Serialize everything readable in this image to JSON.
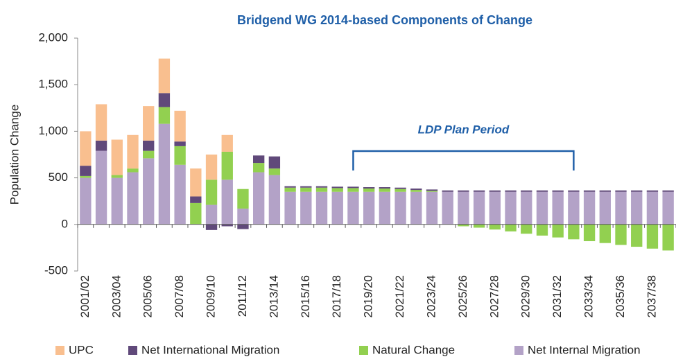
{
  "chart_data": {
    "type": "stacked_bar",
    "title": "Bridgend WG 2014-based Components of Change",
    "y_label": "Population Change",
    "annotation": "LDP Plan Period",
    "categories": [
      "2001/02",
      null,
      "2003/04",
      null,
      "2005/06",
      null,
      "2007/08",
      null,
      "2009/10",
      null,
      "2011/12",
      null,
      "2013/14",
      null,
      "2015/16",
      null,
      "2017/18",
      null,
      "2019/20",
      null,
      "2021/22",
      null,
      "2023/24",
      null,
      "2025/26",
      null,
      "2027/28",
      null,
      "2029/30",
      null,
      "2031/32",
      null,
      "2033/34",
      null,
      "2035/36",
      null,
      "2037/38",
      null
    ],
    "series": [
      {
        "name": "UPC",
        "color": "#f9bf8f",
        "values": [
          370,
          390,
          380,
          360,
          370,
          370,
          330,
          300,
          270,
          180,
          0,
          0,
          0,
          0,
          0,
          0,
          0,
          0,
          0,
          0,
          0,
          0,
          0,
          0,
          0,
          0,
          0,
          0,
          0,
          0,
          0,
          0,
          0,
          0,
          0,
          0,
          0,
          0
        ]
      },
      {
        "name": "Net International Migration",
        "color": "#60497a",
        "values": [
          110,
          110,
          0,
          0,
          110,
          150,
          50,
          70,
          -60,
          -20,
          -50,
          80,
          130,
          15,
          15,
          15,
          15,
          15,
          15,
          15,
          15,
          15,
          15,
          15,
          15,
          15,
          15,
          15,
          15,
          15,
          15,
          15,
          15,
          15,
          15,
          15,
          15,
          15
        ]
      },
      {
        "name": "Natural Change",
        "color": "#92d050",
        "values": [
          20,
          0,
          30,
          40,
          80,
          180,
          200,
          230,
          270,
          300,
          210,
          100,
          70,
          45,
          45,
          45,
          40,
          40,
          35,
          35,
          30,
          20,
          10,
          0,
          -20,
          -35,
          -55,
          -75,
          -100,
          -120,
          -140,
          -160,
          -180,
          -200,
          -220,
          -240,
          -260,
          -280
        ]
      },
      {
        "name": "Net Internal Migration",
        "color": "#b3a2c7",
        "values": [
          500,
          790,
          500,
          560,
          710,
          1080,
          640,
          0,
          210,
          480,
          170,
          560,
          530,
          350,
          350,
          350,
          350,
          350,
          350,
          350,
          350,
          350,
          350,
          350,
          350,
          350,
          350,
          350,
          350,
          350,
          350,
          350,
          350,
          350,
          350,
          350,
          350,
          350
        ]
      }
    ],
    "ylim": [
      -500,
      2000
    ],
    "yticks": [
      -500,
      0,
      500,
      {
        "value": 1000,
        "label": "1,000"
      },
      {
        "value": 1500,
        "label": "1,500"
      },
      {
        "value": 2000,
        "label": "2,000"
      }
    ],
    "grid": false
  }
}
